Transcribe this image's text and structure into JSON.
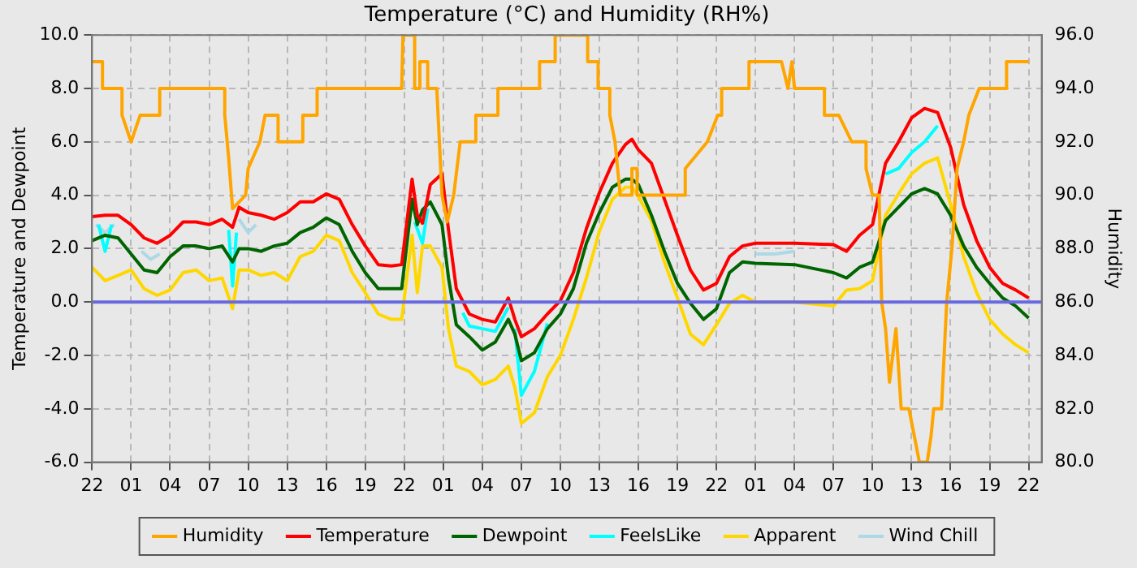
{
  "chart_data": {
    "type": "line",
    "title": "Temperature (°C) and Humidity (RH%)",
    "ylabel": "Temperature and Dewpoint",
    "y2label": "Humidity",
    "x": [
      "--01-01T22:00",
      "--01-01T23:00",
      "--01-02T00:00",
      "--01-02T01:00",
      "--01-02T02:00",
      "--01-02T03:00",
      "--01-02T04:00",
      "--01-02T05:00",
      "--01-02T06:00",
      "--01-02T07:00",
      "--01-02T08:00",
      "--01-02T08:48",
      "--01-02T09:18",
      "--01-02T10:00",
      "--01-02T11:00",
      "--01-02T12:00",
      "--01-02T13:00",
      "--01-02T14:00",
      "--01-02T15:00",
      "--01-02T16:00",
      "--01-02T17:00",
      "--01-02T18:00",
      "--01-02T19:00",
      "--01-02T20:00",
      "--01-02T21:00",
      "--01-02T21:48",
      "--01-02T22:36",
      "--01-02T23:00",
      "--01-02T23:24",
      "--01-03T00:00",
      "--01-03T00:54",
      "--01-03T01:24",
      "--01-03T02:00",
      "--01-03T03:00",
      "--01-03T04:00",
      "--01-03T05:00",
      "--01-03T06:00",
      "--01-03T06:30",
      "--01-03T07:00",
      "--01-03T08:00",
      "--01-03T09:00",
      "--01-03T10:00",
      "--01-03T11:00",
      "--01-03T12:00",
      "--01-03T13:00",
      "--01-03T14:00",
      "--01-03T15:00",
      "--01-03T15:30",
      "--01-03T16:00",
      "--01-03T17:00",
      "--01-03T18:00",
      "--01-03T19:00",
      "--01-03T20:00",
      "--01-03T21:00",
      "--01-03T22:00",
      "--01-03T23:00",
      "--01-04T00:00",
      "--01-04T01:00",
      "--01-04T04:00",
      "--01-04T07:00",
      "--01-04T08:00",
      "--01-04T09:00",
      "--01-04T10:00",
      "--01-04T11:00",
      "--01-04T12:00",
      "--01-04T13:00",
      "--01-04T14:00",
      "--01-04T15:00",
      "--01-04T16:00",
      "--01-04T17:00",
      "--01-04T18:00",
      "--01-04T19:00",
      "--01-04T20:00",
      "--01-04T21:00",
      "--01-04T22:00"
    ],
    "series": [
      {
        "name": "Humidity",
        "color": "#ffa500",
        "axis": "y2",
        "x": [
          "--01-01T22:00",
          "--01-01T22:48",
          "--01-01T22:48",
          "--01-02T00:18",
          "--01-02T00:18",
          "--01-02T01:00",
          "--01-02T01:42",
          "--01-02T03:12",
          "--01-02T03:12",
          "--01-02T08:12",
          "--01-02T08:12",
          "--01-02T08:30",
          "--01-02T08:48",
          "--01-02T09:48",
          "--01-02T10:00",
          "--01-02T10:54",
          "--01-02T11:18",
          "--01-02T12:18",
          "--01-02T12:18",
          "--01-02T14:12",
          "--01-02T14:12",
          "--01-02T15:18",
          "--01-02T15:18",
          "--01-02T21:48",
          "--01-02T21:54",
          "--01-02T22:48",
          "--01-02T22:48",
          "--01-02T23:12",
          "--01-02T23:12",
          "--01-02T23:48",
          "--01-02T23:48",
          "--01-03T00:30",
          "--01-03T00:54",
          "--01-03T01:18",
          "--01-03T01:48",
          "--01-03T02:18",
          "--01-03T03:30",
          "--01-03T03:30",
          "--01-03T05:12",
          "--01-03T05:12",
          "--01-03T08:24",
          "--01-03T08:24",
          "--01-03T09:36",
          "--01-03T09:36",
          "--01-03T12:06",
          "--01-03T12:06",
          "--01-03T12:54",
          "--01-03T12:54",
          "--01-03T13:48",
          "--01-03T13:48",
          "--01-03T14:12",
          "--01-03T14:36",
          "--01-03T15:30",
          "--01-03T15:30",
          "--01-03T15:54",
          "--01-03T15:54",
          "--01-03T19:36",
          "--01-03T19:36",
          "--01-03T21:18",
          "--01-03T22:06",
          "--01-03T22:24",
          "--01-03T22:24",
          "--01-04T00:30",
          "--01-04T00:30",
          "--01-04T03:00",
          "--01-04T03:30",
          "--01-04T03:48",
          "--01-04T04:00",
          "--01-04T06:18",
          "--01-04T06:18",
          "--01-04T07:24",
          "--01-04T08:24",
          "--01-04T09:30",
          "--01-04T09:30",
          "--01-04T10:00",
          "--01-04T10:30",
          "--01-04T10:42",
          "--01-04T11:00",
          "--01-04T11:18",
          "--01-04T11:48",
          "--01-04T12:12",
          "--01-04T12:48",
          "--01-04T13:12",
          "--01-04T13:36",
          "--01-04T14:12",
          "--01-04T14:30",
          "--01-04T14:42",
          "--01-04T15:18",
          "--01-04T15:42",
          "--01-04T16:06",
          "--01-04T16:30",
          "--01-04T17:00",
          "--01-04T17:24",
          "--01-04T18:12",
          "--01-04T20:18",
          "--01-04T20:18",
          "--01-04T22:00"
        ],
        "values": [
          95,
          95,
          94,
          94,
          93,
          92,
          93,
          93,
          94,
          94,
          93,
          91.4,
          89.5,
          90,
          91,
          92,
          93,
          93,
          92,
          92,
          93,
          93,
          94,
          94,
          96,
          96,
          94,
          94,
          95,
          95,
          94,
          94,
          90,
          89,
          90,
          92,
          92,
          93,
          93,
          94,
          94,
          95,
          95,
          96,
          96,
          95,
          95,
          94,
          94,
          93,
          92,
          90,
          90,
          91,
          91,
          90,
          90,
          91,
          92,
          93,
          93,
          94,
          94,
          95,
          95,
          94,
          95,
          94,
          94,
          93,
          93,
          92,
          92,
          91,
          90,
          90,
          86,
          85,
          83,
          85,
          82,
          82,
          81,
          80,
          80,
          81,
          82,
          82,
          86,
          88,
          91,
          92,
          93,
          94,
          94,
          95,
          95
        ]
      },
      {
        "name": "Temperature",
        "color": "#ff0000",
        "values": [
          3.2,
          3.25,
          3.25,
          2.9,
          2.4,
          2.2,
          2.5,
          3.0,
          3.0,
          2.9,
          3.1,
          2.8,
          3.55,
          3.35,
          3.25,
          3.1,
          3.35,
          3.75,
          3.75,
          4.05,
          3.85,
          2.9,
          2.1,
          1.4,
          1.35,
          1.4,
          4.6,
          3.25,
          2.95,
          4.4,
          4.8,
          2.7,
          0.5,
          -0.45,
          -0.65,
          -0.75,
          0.15,
          -0.65,
          -1.3,
          -1.0,
          -0.45,
          0.05,
          1.1,
          2.75,
          4.1,
          5.2,
          5.9,
          6.1,
          5.7,
          5.2,
          3.85,
          2.5,
          1.2,
          0.45,
          0.7,
          1.7,
          2.1,
          2.2,
          2.2,
          2.15,
          1.9,
          2.5,
          2.9,
          5.2,
          6.0,
          6.9,
          7.25,
          7.1,
          5.8,
          3.65,
          2.3,
          1.3,
          0.7,
          0.45,
          0.15
        ]
      },
      {
        "name": "Dewpoint",
        "color": "#006400",
        "values": [
          2.3,
          2.5,
          2.4,
          1.8,
          1.2,
          1.1,
          1.7,
          2.1,
          2.1,
          2.0,
          2.1,
          1.5,
          2.0,
          2.0,
          1.9,
          2.1,
          2.2,
          2.6,
          2.8,
          3.15,
          2.9,
          1.9,
          1.1,
          0.5,
          0.5,
          0.5,
          3.85,
          2.9,
          3.45,
          3.75,
          2.9,
          0.9,
          -0.85,
          -1.3,
          -1.8,
          -1.5,
          -0.65,
          -1.2,
          -2.2,
          -1.9,
          -1.0,
          -0.45,
          0.5,
          2.2,
          3.35,
          4.3,
          4.6,
          4.6,
          4.4,
          3.25,
          1.9,
          0.7,
          -0.05,
          -0.65,
          -0.25,
          1.1,
          1.5,
          1.45,
          1.4,
          1.1,
          0.9,
          1.3,
          1.5,
          3.05,
          3.55,
          4.05,
          4.25,
          4.05,
          3.25,
          2.1,
          1.3,
          0.7,
          0.15,
          -0.15,
          -0.6
        ]
      },
      {
        "name": "FeelsLike",
        "color": "#00ffff",
        "x": [
          "--01-01T22:30",
          "--01-01T23:00",
          "--01-01T23:30",
          "--01-02T00:00",
          "--01-02T08:30",
          "--01-02T08:48",
          "--01-02T09:06",
          "--01-02T12:00",
          "--01-02T22:48",
          "--01-02T23:24",
          "--01-02T23:48",
          "--01-03T01:00",
          "--01-03T02:30",
          "--01-03T03:00",
          "--01-03T04:00",
          "--01-03T05:00",
          "--01-03T06:00",
          "--01-03T06:15",
          "--01-03T06:30",
          "--01-03T07:00",
          "--01-03T08:00",
          "--01-03T09:00",
          "--01-04T00:00",
          "--01-04T11:00",
          "--01-04T12:00",
          "--01-04T13:00",
          "--01-04T14:00",
          "--01-04T15:00"
        ],
        "values": [
          2.9,
          1.9,
          2.9,
          null,
          2.7,
          0.6,
          2.6,
          null,
          3.0,
          2.2,
          3.5,
          null,
          -0.4,
          -0.9,
          -1.0,
          -1.1,
          -0.2,
          null,
          -1.0,
          -3.5,
          -2.6,
          -0.8,
          null,
          4.8,
          5.0,
          5.6,
          6.0,
          6.6
        ]
      },
      {
        "name": "Apparent",
        "color": "#ffd700",
        "values": [
          1.3,
          0.8,
          1.0,
          1.2,
          0.5,
          0.25,
          0.45,
          1.1,
          1.2,
          0.8,
          0.9,
          -0.25,
          1.2,
          1.2,
          1.0,
          1.1,
          0.8,
          1.7,
          1.9,
          2.5,
          2.3,
          1.1,
          0.35,
          -0.45,
          -0.65,
          -0.65,
          2.5,
          0.35,
          2.1,
          2.1,
          1.3,
          -1.0,
          -2.4,
          -2.6,
          -3.1,
          -2.9,
          -2.4,
          -3.2,
          -4.55,
          -4.15,
          -2.8,
          -2.0,
          -0.65,
          0.9,
          2.65,
          3.85,
          4.3,
          4.3,
          3.95,
          3.05,
          1.5,
          0.15,
          -1.2,
          -1.6,
          -0.85,
          -0.05,
          0.25,
          0.0,
          0.0,
          -0.15,
          0.45,
          0.5,
          0.8,
          3.25,
          4.05,
          4.8,
          5.2,
          5.4,
          3.65,
          1.7,
          0.35,
          -0.65,
          -1.2,
          -1.6,
          -1.9
        ]
      },
      {
        "name": "Wind Chill",
        "color": "#add8e6",
        "x": [
          "--01-01T22:18",
          "--01-01T23:00",
          "--01-01T23:42",
          "--01-02T00:30",
          "--01-02T01:48",
          "--01-02T02:30",
          "--01-02T03:12",
          "--01-02T05:00",
          "--01-02T09:18",
          "--01-02T10:00",
          "--01-02T10:36",
          "--01-03T12:00",
          "--01-04T01:00",
          "--01-04T02:30",
          "--01-04T04:00"
        ],
        "values": [
          2.9,
          2.6,
          2.9,
          null,
          1.9,
          1.6,
          1.8,
          null,
          3.1,
          2.6,
          2.9,
          null,
          1.8,
          1.8,
          1.9
        ]
      }
    ],
    "xlim": [
      "--01-01T22:00",
      "--01-04T23:00"
    ],
    "xticks": [
      {
        "value": "--01-01T22:00",
        "label": "22"
      },
      {
        "value": "--01-02T01:00",
        "label": "01"
      },
      {
        "value": "--01-02T04:00",
        "label": "04"
      },
      {
        "value": "--01-02T07:00",
        "label": "07"
      },
      {
        "value": "--01-02T10:00",
        "label": "10"
      },
      {
        "value": "--01-02T13:00",
        "label": "13"
      },
      {
        "value": "--01-02T16:00",
        "label": "16"
      },
      {
        "value": "--01-02T19:00",
        "label": "19"
      },
      {
        "value": "--01-02T22:00",
        "label": "22"
      },
      {
        "value": "--01-03T01:00",
        "label": "01"
      },
      {
        "value": "--01-03T04:00",
        "label": "04"
      },
      {
        "value": "--01-03T07:00",
        "label": "07"
      },
      {
        "value": "--01-03T10:00",
        "label": "10"
      },
      {
        "value": "--01-03T13:00",
        "label": "13"
      },
      {
        "value": "--01-03T16:00",
        "label": "16"
      },
      {
        "value": "--01-03T19:00",
        "label": "19"
      },
      {
        "value": "--01-03T22:00",
        "label": "22"
      },
      {
        "value": "--01-04T01:00",
        "label": "01"
      },
      {
        "value": "--01-04T04:00",
        "label": "04"
      },
      {
        "value": "--01-04T07:00",
        "label": "07"
      },
      {
        "value": "--01-04T10:00",
        "label": "10"
      },
      {
        "value": "--01-04T13:00",
        "label": "13"
      },
      {
        "value": "--01-04T16:00",
        "label": "16"
      },
      {
        "value": "--01-04T19:00",
        "label": "19"
      },
      {
        "value": "--01-04T22:00",
        "label": "22"
      }
    ],
    "ylim": [
      -6,
      10
    ],
    "yticks": [
      {
        "value": -6,
        "label": "-6.0"
      },
      {
        "value": -4,
        "label": "-4.0"
      },
      {
        "value": -2,
        "label": "-2.0"
      },
      {
        "value": 0,
        "label": "0.0"
      },
      {
        "value": 2,
        "label": "2.0"
      },
      {
        "value": 4,
        "label": "4.0"
      },
      {
        "value": 6,
        "label": "6.0"
      },
      {
        "value": 8,
        "label": "8.0"
      },
      {
        "value": 10,
        "label": "10.0"
      }
    ],
    "y2lim": [
      80,
      96
    ],
    "y2ticks": [
      {
        "value": 80,
        "label": "80.0"
      },
      {
        "value": 82,
        "label": "82.0"
      },
      {
        "value": 84,
        "label": "84.0"
      },
      {
        "value": 86,
        "label": "86.0"
      },
      {
        "value": 88,
        "label": "88.0"
      },
      {
        "value": 90,
        "label": "90.0"
      },
      {
        "value": 92,
        "label": "92.0"
      },
      {
        "value": 94,
        "label": "94.0"
      },
      {
        "value": 96,
        "label": "96.0"
      }
    ],
    "ref_lines": [
      {
        "axis": "y",
        "value": 0,
        "color": "#6a6ae0"
      }
    ],
    "grid": true,
    "legend": "bottom",
    "marker": "none",
    "line_style": "solid"
  }
}
